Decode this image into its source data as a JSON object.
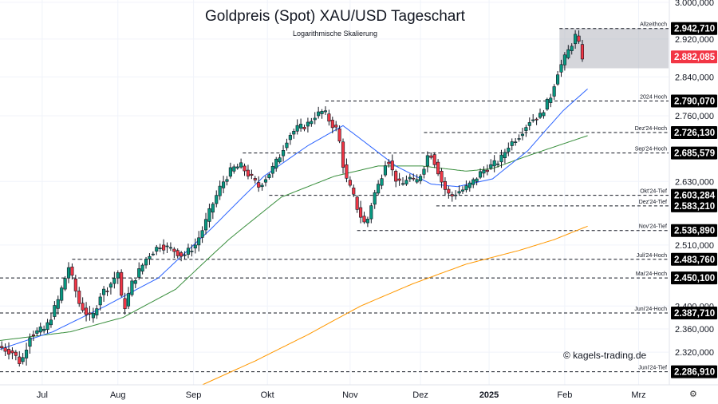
{
  "chart_data": {
    "type": "candlestick",
    "title": "Goldpreis (Spot) XAU/USD Tageschart",
    "subtitle": "Logarithmische Skalierung",
    "scale": "log",
    "ylim": [
      2265,
      3005
    ],
    "y_ticks": [
      {
        "value": 3000,
        "label": "3.000,000"
      },
      {
        "value": 2920,
        "label": "2.920,000"
      },
      {
        "value": 2840,
        "label": "2.840,000"
      },
      {
        "value": 2760,
        "label": "2.760,000"
      },
      {
        "value": 2630,
        "label": "2.630,000"
      },
      {
        "value": 2510,
        "label": "2.510,000"
      },
      {
        "value": 2400,
        "label": "2.400,000"
      },
      {
        "value": 2360,
        "label": "2.360,000"
      },
      {
        "value": 2320,
        "label": "2.320,000"
      }
    ],
    "x_labels": [
      {
        "label": "Jul",
        "bold": false
      },
      {
        "label": "Aug",
        "bold": false
      },
      {
        "label": "Sep",
        "bold": false
      },
      {
        "label": "Okt",
        "bold": false
      },
      {
        "label": "Nov",
        "bold": false
      },
      {
        "label": "Dez",
        "bold": false
      },
      {
        "label": "2025",
        "bold": true
      },
      {
        "label": "Feb",
        "bold": false
      },
      {
        "label": "Mrz",
        "bold": false
      }
    ],
    "x_label_index": [
      24,
      67,
      110,
      152,
      199,
      239,
      278,
      321,
      363
    ],
    "x_index_range": [
      0,
      380
    ],
    "levels": [
      {
        "name": "Allzeithoch",
        "value": 2942.71,
        "label": "2.942,710",
        "start": 318
      },
      {
        "name": "2024 Hoch",
        "value": 2790.07,
        "label": "2.790,070",
        "start": 185
      },
      {
        "name": "Dez'24-Hoch",
        "value": 2726.13,
        "label": "2.726,130",
        "start": 241
      },
      {
        "name": "Sep'24-Hoch",
        "value": 2685.579,
        "label": "2.685,579",
        "start": 138
      },
      {
        "name": "Okt'24-Tief",
        "value": 2603.284,
        "label": "2.603,284",
        "start": 153
      },
      {
        "name": "Dez'24-Tief",
        "value": 2583.21,
        "label": "2.583,210",
        "start": 248
      },
      {
        "name": "Nov'24-Tief",
        "value": 2536.89,
        "label": "2.536,890",
        "start": 203
      },
      {
        "name": "Juli'24-Hoch",
        "value": 2483.76,
        "label": "2.483,760",
        "start": 41
      },
      {
        "name": "Mai'24-Hoch",
        "value": 2450.1,
        "label": "2.450,100",
        "start": 0
      },
      {
        "name": "Juni'24-Hoch",
        "value": 2387.71,
        "label": "2.387,710",
        "start": 0
      },
      {
        "name": "Juni'24-Tief",
        "value": 2286.91,
        "label": "2.286,910",
        "start": 0
      }
    ],
    "current_price": {
      "value": 2882.085,
      "label": "2.882,085",
      "color": "#f23645"
    },
    "zone": {
      "from": 2858,
      "to": 2942.71,
      "start": 318
    },
    "colors": {
      "up": "#089981",
      "down": "#f23645",
      "ma_fast": "#2962ff",
      "ma_mid": "#388e3c",
      "ma_slow": "#ff9800",
      "zone": "#b2b5be"
    },
    "path_anchors": [
      [
        0,
        2330
      ],
      [
        8,
        2320
      ],
      [
        13,
        2300
      ],
      [
        18,
        2350
      ],
      [
        27,
        2360
      ],
      [
        34,
        2410
      ],
      [
        40,
        2470
      ],
      [
        46,
        2405
      ],
      [
        53,
        2375
      ],
      [
        58,
        2420
      ],
      [
        64,
        2440
      ],
      [
        68,
        2460
      ],
      [
        71,
        2390
      ],
      [
        76,
        2440
      ],
      [
        85,
        2490
      ],
      [
        92,
        2510
      ],
      [
        100,
        2500
      ],
      [
        105,
        2490
      ],
      [
        112,
        2510
      ],
      [
        117,
        2545
      ],
      [
        121,
        2580
      ],
      [
        127,
        2625
      ],
      [
        133,
        2655
      ],
      [
        138,
        2660
      ],
      [
        143,
        2640
      ],
      [
        148,
        2620
      ],
      [
        155,
        2650
      ],
      [
        160,
        2680
      ],
      [
        165,
        2720
      ],
      [
        170,
        2735
      ],
      [
        175,
        2740
      ],
      [
        180,
        2760
      ],
      [
        185,
        2770
      ],
      [
        189,
        2745
      ],
      [
        193,
        2730
      ],
      [
        197,
        2640
      ],
      [
        201,
        2610
      ],
      [
        205,
        2570
      ],
      [
        209,
        2545
      ],
      [
        213,
        2600
      ],
      [
        217,
        2630
      ],
      [
        221,
        2680
      ],
      [
        225,
        2640
      ],
      [
        229,
        2620
      ],
      [
        233,
        2640
      ],
      [
        237,
        2625
      ],
      [
        241,
        2650
      ],
      [
        245,
        2690
      ],
      [
        249,
        2660
      ],
      [
        253,
        2620
      ],
      [
        257,
        2600
      ],
      [
        261,
        2610
      ],
      [
        265,
        2615
      ],
      [
        270,
        2630
      ],
      [
        275,
        2650
      ],
      [
        280,
        2660
      ],
      [
        285,
        2670
      ],
      [
        290,
        2700
      ],
      [
        296,
        2720
      ],
      [
        302,
        2750
      ],
      [
        308,
        2760
      ],
      [
        314,
        2800
      ],
      [
        318,
        2850
      ],
      [
        322,
        2880
      ],
      [
        326,
        2910
      ],
      [
        329,
        2935
      ],
      [
        331,
        2882
      ]
    ],
    "ma_fast_anchors": [
      [
        0,
        2325
      ],
      [
        30,
        2355
      ],
      [
        60,
        2400
      ],
      [
        90,
        2450
      ],
      [
        120,
        2540
      ],
      [
        150,
        2640
      ],
      [
        175,
        2700
      ],
      [
        195,
        2740
      ],
      [
        210,
        2700
      ],
      [
        225,
        2660
      ],
      [
        245,
        2625
      ],
      [
        260,
        2620
      ],
      [
        280,
        2635
      ],
      [
        300,
        2690
      ],
      [
        320,
        2770
      ],
      [
        334,
        2815
      ]
    ],
    "ma_mid_anchors": [
      [
        0,
        2340
      ],
      [
        40,
        2355
      ],
      [
        70,
        2380
      ],
      [
        100,
        2430
      ],
      [
        130,
        2520
      ],
      [
        160,
        2600
      ],
      [
        190,
        2640
      ],
      [
        215,
        2660
      ],
      [
        240,
        2660
      ],
      [
        265,
        2650
      ],
      [
        280,
        2655
      ],
      [
        300,
        2680
      ],
      [
        334,
        2720
      ]
    ],
    "ma_slow_anchors": [
      [
        115,
        2265
      ],
      [
        145,
        2305
      ],
      [
        175,
        2350
      ],
      [
        205,
        2400
      ],
      [
        235,
        2440
      ],
      [
        265,
        2475
      ],
      [
        295,
        2500
      ],
      [
        315,
        2520
      ],
      [
        334,
        2545
      ]
    ]
  },
  "header": {
    "title": "Goldpreis (Spot) XAU/USD Tageschart",
    "subtitle": "Logarithmische Skalierung"
  },
  "footer": {
    "watermark": "© kagels-trading.de",
    "settings_icon": "gear-icon"
  }
}
